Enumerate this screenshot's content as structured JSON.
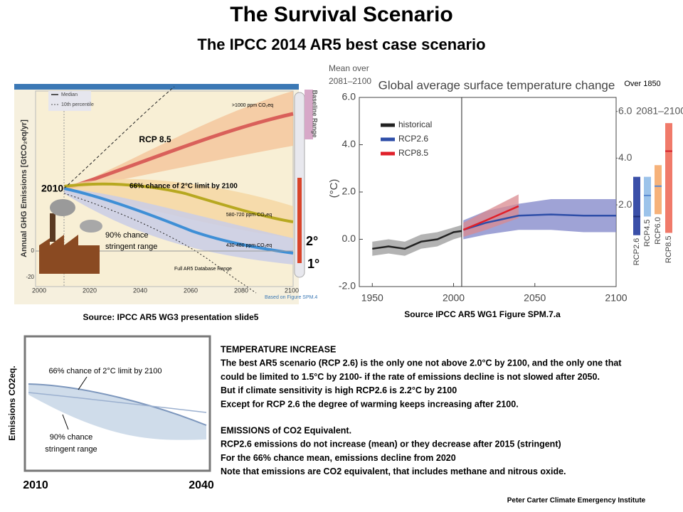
{
  "title": "The Survival Scenario",
  "subtitle": "The IPCC 2014 AR5 best case  scenario",
  "left_figure": {
    "y_axis_label": "Annual GHG Emissions [GtCO₂eq/yr]",
    "legend": [
      "Median",
      "10th percentile"
    ],
    "xticks": [
      2000,
      2020,
      2040,
      2060,
      2080,
      2100
    ],
    "yticks": [
      0,
      -20
    ],
    "labels": {
      "rcp85": "RCP 8.5",
      "high_ppm": ">1000 ppm CO₂eq",
      "start": "2010",
      "chance66": "66% chance of 2°C limit by 2100",
      "mid_ppm": "580-720 ppm CO₂eq",
      "low_ppm": "430-480 ppm CO₂eq",
      "chance90": "90% chance",
      "stringent": "stringent range",
      "database": "Full AR5 Database Range",
      "based_on": "Based on Figure SPM.4",
      "baseline": "Baseline Range",
      "deg2": "2°",
      "deg1": "1°"
    }
  },
  "left_caption": "Source: IPCC AR5  WG3 presentation slide5",
  "chart_data": {
    "type": "line",
    "title": "Global average surface temperature change",
    "y_axis_label": "(°C)",
    "corner_note": [
      "Mean over",
      "2081–2100"
    ],
    "right_note": "Over 1850",
    "xlim": [
      1942,
      2100
    ],
    "xticks": [
      1950,
      2000,
      2050,
      2100
    ],
    "ylim": [
      -2,
      6
    ],
    "yticks": [
      {
        "value": 6,
        "label": "6.0"
      },
      {
        "value": 4,
        "label": "4.0"
      },
      {
        "value": 2,
        "label": "2.0"
      },
      {
        "value": 0,
        "label": "0.0"
      },
      {
        "value": -2,
        "label": "-2.0"
      }
    ],
    "divider_x": 2005,
    "series": [
      {
        "name": "historical",
        "color": "#222222",
        "x": [
          1950,
          1960,
          1970,
          1980,
          1990,
          2000,
          2005
        ],
        "values": [
          -0.4,
          -0.3,
          -0.4,
          -0.1,
          0.0,
          0.3,
          0.35
        ],
        "low": [
          -0.7,
          -0.6,
          -0.7,
          -0.4,
          -0.3,
          0.0,
          0.1
        ],
        "high": [
          -0.1,
          0.0,
          -0.1,
          0.2,
          0.3,
          0.5,
          0.6
        ],
        "band_color": "#9a9a9a"
      },
      {
        "name": "RCP2.6",
        "color": "#2e4ea8",
        "x": [
          2006,
          2020,
          2040,
          2060,
          2080,
          2100
        ],
        "values": [
          0.4,
          0.7,
          1.0,
          1.05,
          1.0,
          1.0
        ],
        "low": [
          0.0,
          0.2,
          0.4,
          0.4,
          0.3,
          0.3
        ],
        "high": [
          0.8,
          1.2,
          1.5,
          1.7,
          1.7,
          1.7
        ],
        "band_color": "#7f84c8"
      },
      {
        "name": "RCP8.5",
        "color": "#e0202a",
        "x": [
          2006,
          2020,
          2040
        ],
        "values": [
          0.4,
          0.8,
          1.4
        ],
        "low": [
          0.1,
          0.4,
          0.9
        ],
        "high": [
          0.7,
          1.2,
          1.9
        ],
        "band_color": "#d98a8f"
      }
    ],
    "y2lim": [
      -1.5,
      6.6
    ],
    "y2ticks": [
      {
        "value": 6,
        "label": "6.0"
      },
      {
        "value": 4,
        "label": "4.0"
      },
      {
        "value": 2,
        "label": "2.0"
      }
    ],
    "y2_note": "2081–2100",
    "mean_bars": [
      {
        "name": "RCP2.6",
        "color": "#3a4fa8",
        "low": 0.7,
        "high": 3.2,
        "mean": 1.5
      },
      {
        "name": "RCP4.5",
        "color": "#9cc3ea",
        "low": 1.5,
        "high": 3.2,
        "mean": 2.4
      },
      {
        "name": "RCP6.0",
        "color": "#f6b27a",
        "low": 1.6,
        "high": 3.7,
        "mean": 2.8
      },
      {
        "name": "RCP8.5",
        "color": "#f07a6a",
        "low": 0.8,
        "high": 5.5,
        "mean": 4.3
      }
    ]
  },
  "right_caption": "Source IPCC AR5 WG1 Figure SPM.7.a",
  "inset": {
    "y_axis_label": "Emissions CO2eq.",
    "x_start": "2010",
    "x_end": "2040",
    "chance66": "66% chance  of 2°C limit by 2100",
    "chance90": "90% chance",
    "stringent": "stringent range"
  },
  "text_block": [
    [
      "TEMPERATURE INCREASE",
      " The best AR5 scenario (RCP 2.6) is the only one  not above 2.0°C by 2100, and the only one that",
      "could be limited to 1.5°C by 2100-  if the rate of emissions decline is not slowed after 2050.",
      "But if climate sensitivity is high RCP2.6 is 2.2°C by 2100",
      "Except for RCP 2.6 the degree of warming keeps increasing after 2100."
    ],
    [
      "EMISSIONS of CO2 Equivalent.",
      "RCP2.6 emissions do not increase (mean) or they decrease after 2015 (stringent)",
      "For the 66% chance mean, emissions decline from 2020",
      "Note that emissions are CO2 equivalent, that includes methane and nitrous oxide."
    ]
  ],
  "footer": "Peter Carter Climate Emergency Institute"
}
